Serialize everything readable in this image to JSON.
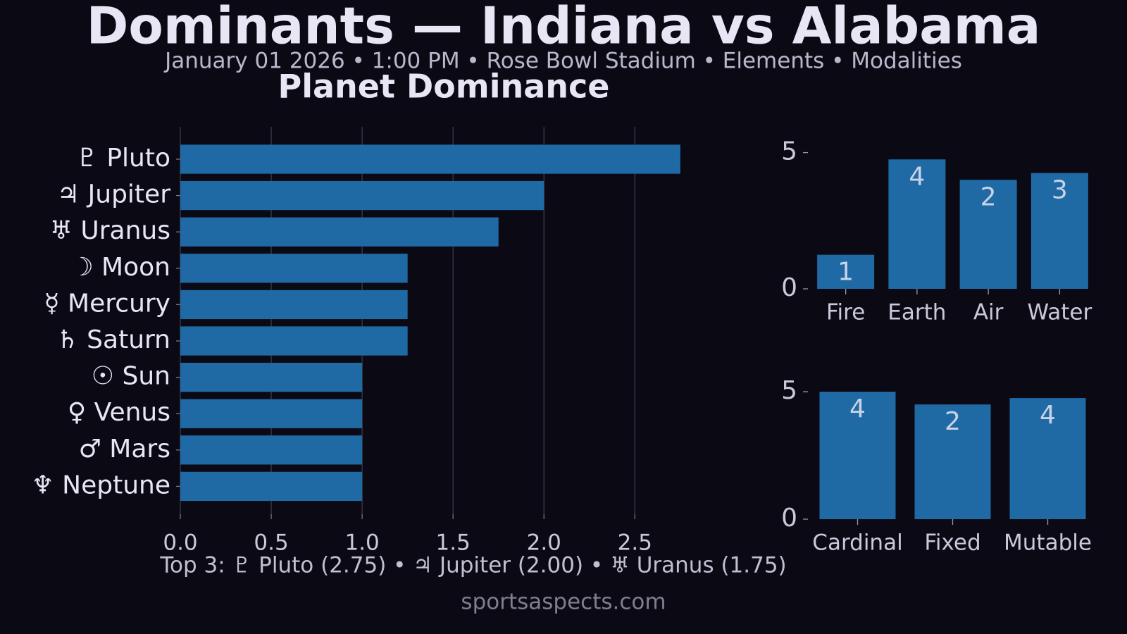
{
  "header": {
    "title": "Dominants — Indiana vs Alabama",
    "subtitle": "January 01 2026 • 1:00 PM • Rose Bowl Stadium • Elements • Modalities"
  },
  "chart_data": [
    {
      "type": "barh",
      "title": "Planet Dominance",
      "categories": [
        "♇ Pluto",
        "♃ Jupiter",
        "♅ Uranus",
        "☽ Moon",
        "☿ Mercury",
        "♄ Saturn",
        "☉ Sun",
        "♀ Venus",
        "♂ Mars",
        "♆ Neptune"
      ],
      "values": [
        2.75,
        2.0,
        1.75,
        1.25,
        1.25,
        1.25,
        1.0,
        1.0,
        1.0,
        1.0
      ],
      "color": "#1f6aa5",
      "xlim": [
        0,
        2.89
      ],
      "xticks": [
        {
          "value": 0,
          "label": "0.0"
        },
        {
          "value": 0.5,
          "label": "0.5"
        },
        {
          "value": 1,
          "label": "1.0"
        },
        {
          "value": 1.5,
          "label": "1.5"
        },
        {
          "value": 2,
          "label": "2.0"
        },
        {
          "value": 2.5,
          "label": "2.5"
        }
      ],
      "grid": true
    },
    {
      "type": "bar",
      "categories": [
        "Fire",
        "Earth",
        "Air",
        "Water"
      ],
      "values": [
        1.25,
        4.75,
        4.0,
        4.25
      ],
      "counts": [
        1,
        4,
        2,
        3
      ],
      "color": "#1f6aa5",
      "ylim": [
        0,
        5.3
      ],
      "yticks": [
        0,
        5
      ],
      "grid": false
    },
    {
      "type": "bar",
      "categories": [
        "Cardinal",
        "Fixed",
        "Mutable"
      ],
      "values": [
        5.0,
        4.5,
        4.75
      ],
      "counts": [
        4,
        2,
        4
      ],
      "color": "#1f6aa5",
      "ylim": [
        0,
        5.25
      ],
      "yticks": [
        0,
        5
      ],
      "grid": false
    }
  ],
  "footer": {
    "top3": "Top 3: ♇ Pluto (2.75) • ♃ Jupiter (2.00) • ♅ Uranus (1.75)",
    "site": "sportsaspects.com"
  }
}
